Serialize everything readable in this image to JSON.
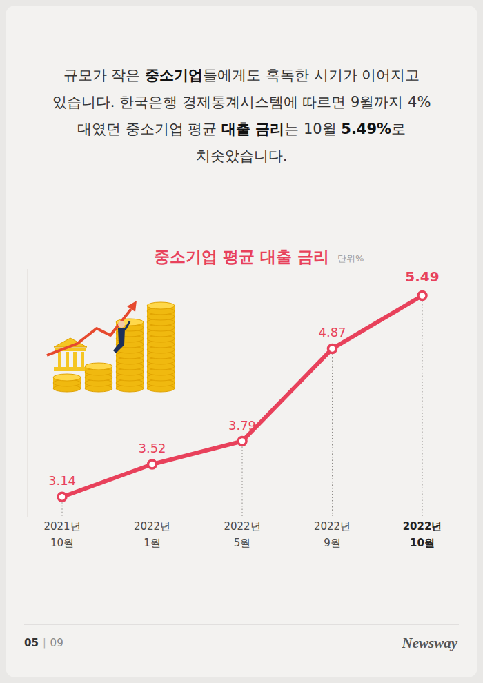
{
  "header": {
    "paragraph": [
      {
        "text": "규모가 작은 ",
        "strong": false
      },
      {
        "text": "중소기업",
        "strong": true
      },
      {
        "text": "들에게도 혹독한 시기가 이어지고 있습니다. 한국은행 경제통계시스템에 따르면 9월까지 4%대였던 중소기업 평균 ",
        "strong": false
      },
      {
        "text": "대출 금리",
        "strong": true
      },
      {
        "text": "는 10월 ",
        "strong": false
      },
      {
        "text": "5.49%",
        "strong": true
      },
      {
        "text": "로 치솟았습니다.",
        "strong": false
      }
    ]
  },
  "chart_data": {
    "type": "line",
    "title": "중소기업 평균 대출 금리",
    "ylabel": "단위%",
    "categories": [
      "2021년 10월",
      "2022년 1월",
      "2022년 5월",
      "2022년 9월",
      "2022년 10월"
    ],
    "values": [
      3.14,
      3.52,
      3.79,
      4.87,
      5.49
    ],
    "color": "#e8415b",
    "marker": "circle",
    "data_labels": true,
    "ylim": [
      2.9,
      5.8
    ],
    "yticks": [],
    "grid": false,
    "tick_labels": "x"
  },
  "footer": {
    "page": "05",
    "separator": "|",
    "total": "09",
    "brand": "Newsway"
  }
}
